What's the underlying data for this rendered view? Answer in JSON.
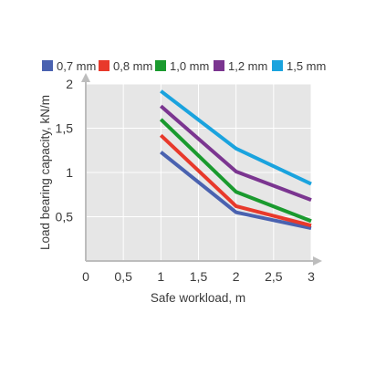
{
  "chart_data": {
    "type": "line",
    "xlabel": "Safe workload, m",
    "ylabel": "Load bearing capacity, kN/m",
    "xlim": [
      0,
      3
    ],
    "ylim": [
      0,
      2
    ],
    "x_ticks": [
      0,
      0.5,
      1,
      1.5,
      2,
      2.5,
      3
    ],
    "x_tick_labels": [
      "0",
      "0,5",
      "1",
      "1,5",
      "2",
      "2,5",
      "3"
    ],
    "y_ticks": [
      0.5,
      1,
      1.5,
      2
    ],
    "y_tick_labels": [
      "0,5",
      "1",
      "1,5",
      "2"
    ],
    "grid": true,
    "legend_position": "top",
    "series": [
      {
        "name": "0,7 mm",
        "color": "#4a62b0",
        "x": [
          1,
          2,
          3
        ],
        "y": [
          1.23,
          0.55,
          0.37
        ]
      },
      {
        "name": "0,8 mm",
        "color": "#e8392b",
        "x": [
          1,
          2,
          3
        ],
        "y": [
          1.42,
          0.62,
          0.4
        ]
      },
      {
        "name": "1,0 mm",
        "color": "#1a9a2e",
        "x": [
          1,
          2,
          3
        ],
        "y": [
          1.6,
          0.78,
          0.45
        ]
      },
      {
        "name": "1,2 mm",
        "color": "#7b3590",
        "x": [
          1,
          2,
          3
        ],
        "y": [
          1.75,
          1.01,
          0.69
        ]
      },
      {
        "name": "1,5 mm",
        "color": "#1aa3de",
        "x": [
          1,
          2,
          3
        ],
        "y": [
          1.92,
          1.27,
          0.87
        ]
      }
    ]
  }
}
